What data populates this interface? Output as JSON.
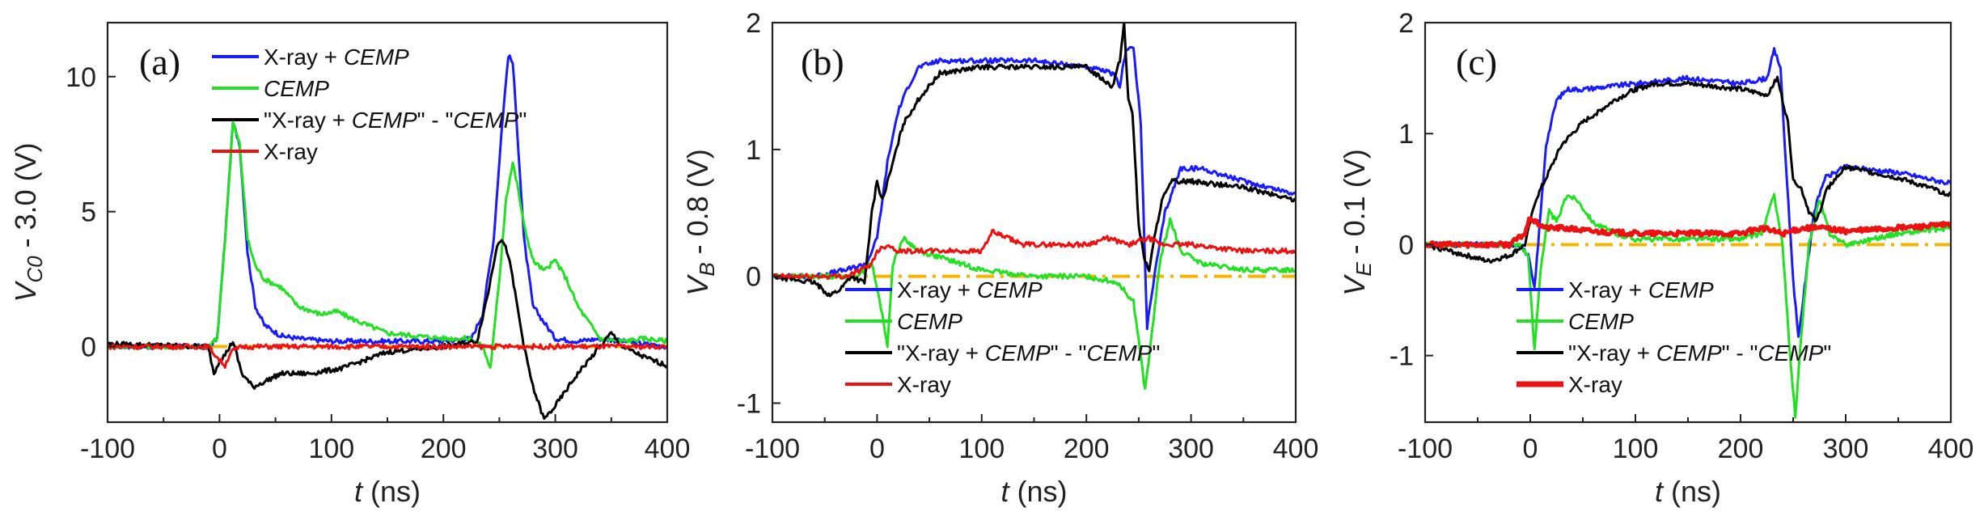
{
  "chart_data": [
    {
      "type": "line",
      "panel_label": "(a)",
      "ylabel": [
        "V",
        "C0",
        " - 3.0 (V)"
      ],
      "xlabel": [
        "t",
        " (ns)"
      ],
      "xlim": [
        -100,
        400
      ],
      "ylim": [
        -2.8,
        12
      ],
      "xticks": [
        "-100",
        "0",
        "100",
        "200",
        "300",
        "400"
      ],
      "yticks": [
        "0",
        "5",
        "10"
      ],
      "ytick_values": [
        0,
        5,
        10
      ],
      "legend_position": "top-center",
      "legend": [
        {
          "color": "#1a1aff",
          "width": 4,
          "parts": [
            [
              "X-ray + ",
              false
            ],
            [
              "CEMP",
              true
            ]
          ]
        },
        {
          "color": "#22e022",
          "width": 4,
          "parts": [
            [
              "CEMP",
              true
            ]
          ]
        },
        {
          "color": "#000000",
          "width": 4,
          "parts": [
            [
              "\"X-ray + ",
              false
            ],
            [
              "CEMP",
              true
            ],
            [
              "\" - \"",
              false
            ],
            [
              "CEMP",
              true
            ],
            [
              "\"",
              false
            ]
          ]
        },
        {
          "color": "#ee1111",
          "width": 4,
          "parts": [
            [
              "X-ray",
              false
            ]
          ]
        }
      ],
      "reference_line": {
        "y": 0,
        "color": "#f5b400",
        "dash": "dash-dot"
      },
      "series": [
        {
          "name": "X-ray + CEMP",
          "color": "#1a1aff",
          "width": 3,
          "x": [
            -100,
            -10,
            -2,
            5,
            12,
            18,
            25,
            32,
            40,
            55,
            70,
            100,
            150,
            200,
            225,
            235,
            245,
            252,
            258,
            262,
            266,
            272,
            280,
            300,
            320,
            340,
            360,
            380,
            400
          ],
          "y": [
            0,
            0,
            0.3,
            4,
            8.3,
            7.5,
            3.5,
            1.5,
            0.8,
            0.4,
            0.3,
            0.2,
            0.2,
            0.2,
            0.3,
            1.2,
            4,
            8,
            10.8,
            10.5,
            8,
            4,
            1.5,
            0.3,
            0.2,
            0.3,
            0.2,
            0.1,
            0
          ]
        },
        {
          "name": "CEMP",
          "color": "#22e022",
          "width": 3,
          "x": [
            -100,
            -10,
            -2,
            5,
            12,
            18,
            25,
            32,
            40,
            55,
            70,
            90,
            105,
            120,
            150,
            200,
            225,
            235,
            242,
            250,
            256,
            262,
            266,
            272,
            280,
            290,
            300,
            310,
            320,
            340,
            360,
            380,
            400
          ],
          "y": [
            0,
            0,
            0.3,
            4,
            8.3,
            7.5,
            4,
            3,
            2.5,
            2.2,
            1.5,
            1.2,
            1.3,
            1,
            0.5,
            0.3,
            0.3,
            0,
            -0.8,
            2.5,
            5.5,
            6.8,
            6,
            4.5,
            3.2,
            2.8,
            3.2,
            2.5,
            1.5,
            0.3,
            0.2,
            0.3,
            0.2
          ]
        },
        {
          "name": "\"X-ray + CEMP\" - \"CEMP\"",
          "color": "#000000",
          "width": 3,
          "x": [
            -100,
            -10,
            -5,
            0,
            5,
            12,
            20,
            30,
            40,
            55,
            80,
            110,
            150,
            200,
            230,
            240,
            248,
            252,
            258,
            264,
            272,
            280,
            290,
            300,
            320,
            340,
            350,
            360,
            380,
            400
          ],
          "y": [
            0.1,
            0,
            -1,
            -0.5,
            -0.3,
            0.2,
            -1,
            -1.5,
            -1.3,
            -1,
            -1,
            -0.8,
            -0.2,
            0,
            0.2,
            2,
            3.8,
            4,
            3.4,
            2,
            0,
            -1.5,
            -2.7,
            -2.2,
            -1,
            0,
            0.5,
            0,
            -0.4,
            -0.7
          ]
        },
        {
          "name": "X-ray",
          "color": "#ee1111",
          "width": 3,
          "x": [
            -100,
            -10,
            0,
            5,
            10,
            20,
            50,
            100,
            200,
            300,
            400
          ],
          "y": [
            0,
            0,
            -0.5,
            -0.7,
            -0.2,
            0,
            0,
            0,
            0,
            0,
            0
          ]
        }
      ]
    },
    {
      "type": "line",
      "panel_label": "(b)",
      "ylabel": [
        "V",
        "B",
        " - 0.8 (V)"
      ],
      "xlabel": [
        "t",
        " (ns)"
      ],
      "xlim": [
        -100,
        400
      ],
      "ylim": [
        -1.15,
        2
      ],
      "xticks": [
        "-100",
        "0",
        "100",
        "200",
        "300",
        "400"
      ],
      "yticks": [
        "-1",
        "0",
        "1",
        "2"
      ],
      "ytick_values": [
        -1,
        0,
        1,
        2
      ],
      "legend_position": "bottom-center",
      "legend": [
        {
          "color": "#1a1aff",
          "width": 4,
          "parts": [
            [
              "X-ray + ",
              false
            ],
            [
              "CEMP",
              true
            ]
          ]
        },
        {
          "color": "#22e022",
          "width": 4,
          "parts": [
            [
              "CEMP",
              true
            ]
          ]
        },
        {
          "color": "#000000",
          "width": 4,
          "parts": [
            [
              "\"X-ray + ",
              false
            ],
            [
              "CEMP",
              true
            ],
            [
              "\" - \"",
              false
            ],
            [
              "CEMP",
              true
            ],
            [
              "\"",
              false
            ]
          ]
        },
        {
          "color": "#ee1111",
          "width": 4,
          "parts": [
            [
              "X-ray",
              false
            ]
          ]
        }
      ],
      "reference_line": {
        "y": 0,
        "color": "#f5b400",
        "dash": "dash-dot"
      },
      "series": [
        {
          "name": "X-ray + CEMP",
          "color": "#1a1aff",
          "width": 3,
          "x": [
            -100,
            -60,
            -30,
            -10,
            0,
            10,
            20,
            30,
            40,
            60,
            100,
            150,
            200,
            225,
            232,
            238,
            245,
            252,
            258,
            265,
            275,
            290,
            310,
            350,
            400
          ],
          "y": [
            0,
            0,
            0.05,
            0.1,
            0.3,
            0.9,
            1.3,
            1.5,
            1.65,
            1.7,
            1.7,
            1.7,
            1.65,
            1.6,
            1.5,
            1.8,
            1.8,
            1.2,
            -0.4,
            0,
            0.5,
            0.85,
            0.85,
            0.75,
            0.65
          ]
        },
        {
          "name": "CEMP",
          "color": "#22e022",
          "width": 3,
          "x": [
            -100,
            -20,
            -5,
            5,
            10,
            15,
            25,
            40,
            60,
            100,
            150,
            200,
            230,
            245,
            250,
            256,
            262,
            270,
            280,
            290,
            310,
            350,
            400
          ],
          "y": [
            0,
            0,
            0.1,
            -0.3,
            -0.55,
            0.1,
            0.3,
            0.2,
            0.15,
            0.05,
            0,
            0,
            -0.05,
            -0.2,
            -0.5,
            -0.9,
            -0.5,
            0.1,
            0.45,
            0.2,
            0.1,
            0.05,
            0.05
          ]
        },
        {
          "name": "\"X-ray + CEMP\" - \"CEMP\"",
          "color": "#000000",
          "width": 3,
          "x": [
            -100,
            -60,
            -45,
            -35,
            -25,
            -12,
            -5,
            0,
            5,
            12,
            25,
            40,
            60,
            100,
            150,
            200,
            225,
            232,
            236,
            240,
            244,
            250,
            255,
            260,
            265,
            272,
            282,
            300,
            350,
            400
          ],
          "y": [
            0,
            -0.05,
            -0.15,
            -0.1,
            0,
            -0.05,
            0.5,
            0.75,
            0.6,
            0.8,
            1.2,
            1.4,
            1.6,
            1.65,
            1.65,
            1.65,
            1.5,
            1.7,
            2,
            1.4,
            1.3,
            0.4,
            0.15,
            0.05,
            0.3,
            0.6,
            0.75,
            0.75,
            0.7,
            0.6
          ]
        },
        {
          "name": "X-ray",
          "color": "#ee1111",
          "width": 3,
          "x": [
            -100,
            -30,
            -15,
            -5,
            0,
            10,
            20,
            40,
            60,
            100,
            110,
            140,
            200,
            220,
            240,
            260,
            270,
            280,
            300,
            350,
            400
          ],
          "y": [
            0,
            0,
            0.05,
            0.1,
            0.2,
            0.25,
            0.2,
            0.2,
            0.2,
            0.2,
            0.35,
            0.25,
            0.25,
            0.3,
            0.25,
            0.3,
            0.25,
            0.25,
            0.25,
            0.2,
            0.2
          ]
        }
      ]
    },
    {
      "type": "line",
      "panel_label": "(c)",
      "ylabel": [
        "V",
        "E",
        " - 0.1 (V)"
      ],
      "xlabel": [
        "t",
        " (ns)"
      ],
      "xlim": [
        -100,
        400
      ],
      "ylim": [
        -1.6,
        2
      ],
      "xticks": [
        "-100",
        "0",
        "100",
        "200",
        "300",
        "400"
      ],
      "yticks": [
        "-1",
        "0",
        "1",
        "2"
      ],
      "ytick_values": [
        -1,
        0,
        1,
        2
      ],
      "legend_position": "bottom-center",
      "legend": [
        {
          "color": "#1a1aff",
          "width": 4,
          "parts": [
            [
              "X-ray + ",
              false
            ],
            [
              "CEMP",
              true
            ]
          ]
        },
        {
          "color": "#22e022",
          "width": 4,
          "parts": [
            [
              "CEMP",
              true
            ]
          ]
        },
        {
          "color": "#000000",
          "width": 4,
          "parts": [
            [
              "\"X-ray + ",
              false
            ],
            [
              "CEMP",
              true
            ],
            [
              "\" - \"",
              false
            ],
            [
              "CEMP",
              true
            ],
            [
              "\"",
              false
            ]
          ]
        },
        {
          "color": "#ee1111",
          "width": 7,
          "parts": [
            [
              "X-ray",
              false
            ]
          ]
        }
      ],
      "reference_line": {
        "y": 0,
        "color": "#f5b400",
        "dash": "dash-dot"
      },
      "series": [
        {
          "name": "X-ray + CEMP",
          "color": "#1a1aff",
          "width": 3,
          "x": [
            -100,
            -10,
            -2,
            4,
            10,
            15,
            25,
            35,
            50,
            100,
            150,
            200,
            225,
            232,
            238,
            242,
            250,
            255,
            262,
            270,
            280,
            300,
            350,
            400
          ],
          "y": [
            0,
            0,
            -0.1,
            -0.4,
            0.3,
            0.9,
            1.3,
            1.4,
            1.4,
            1.45,
            1.5,
            1.45,
            1.5,
            1.75,
            1.6,
            0.9,
            -0.3,
            -0.85,
            -0.3,
            0.3,
            0.6,
            0.7,
            0.65,
            0.55
          ]
        },
        {
          "name": "CEMP",
          "color": "#22e022",
          "width": 3,
          "x": [
            -100,
            -10,
            -2,
            4,
            10,
            18,
            25,
            35,
            45,
            60,
            80,
            100,
            150,
            200,
            220,
            232,
            240,
            247,
            252,
            258,
            265,
            275,
            285,
            300,
            350,
            400
          ],
          "y": [
            0,
            0,
            -0.1,
            -0.95,
            -0.2,
            0.3,
            0.2,
            0.45,
            0.4,
            0.2,
            0.1,
            0.05,
            0.05,
            0.05,
            0.1,
            0.45,
            0,
            -1,
            -1.55,
            -0.8,
            0,
            0.4,
            0.1,
            0,
            0.1,
            0.15
          ]
        },
        {
          "name": "\"X-ray + CEMP\" - \"CEMP\"",
          "color": "#000000",
          "width": 3,
          "x": [
            -100,
            -60,
            -40,
            -20,
            -5,
            5,
            15,
            30,
            50,
            80,
            100,
            120,
            150,
            200,
            225,
            235,
            245,
            250,
            258,
            265,
            272,
            282,
            300,
            350,
            400
          ],
          "y": [
            0,
            -0.1,
            -0.15,
            -0.1,
            0,
            0.4,
            0.6,
            0.9,
            1.1,
            1.3,
            1.4,
            1.45,
            1.45,
            1.4,
            1.35,
            1.5,
            1.1,
            0.6,
            0.5,
            0.3,
            0.2,
            0.5,
            0.7,
            0.6,
            0.45
          ]
        },
        {
          "name": "X-ray",
          "color": "#ee1111",
          "width": 5,
          "x": [
            -100,
            -20,
            -5,
            0,
            5,
            15,
            30,
            60,
            100,
            150,
            200,
            220,
            240,
            260,
            280,
            300,
            350,
            400
          ],
          "y": [
            0,
            0,
            0.1,
            0.25,
            0.2,
            0.15,
            0.15,
            0.12,
            0.1,
            0.1,
            0.1,
            0.15,
            0.1,
            0.15,
            0.15,
            0.12,
            0.15,
            0.18
          ]
        }
      ]
    }
  ]
}
